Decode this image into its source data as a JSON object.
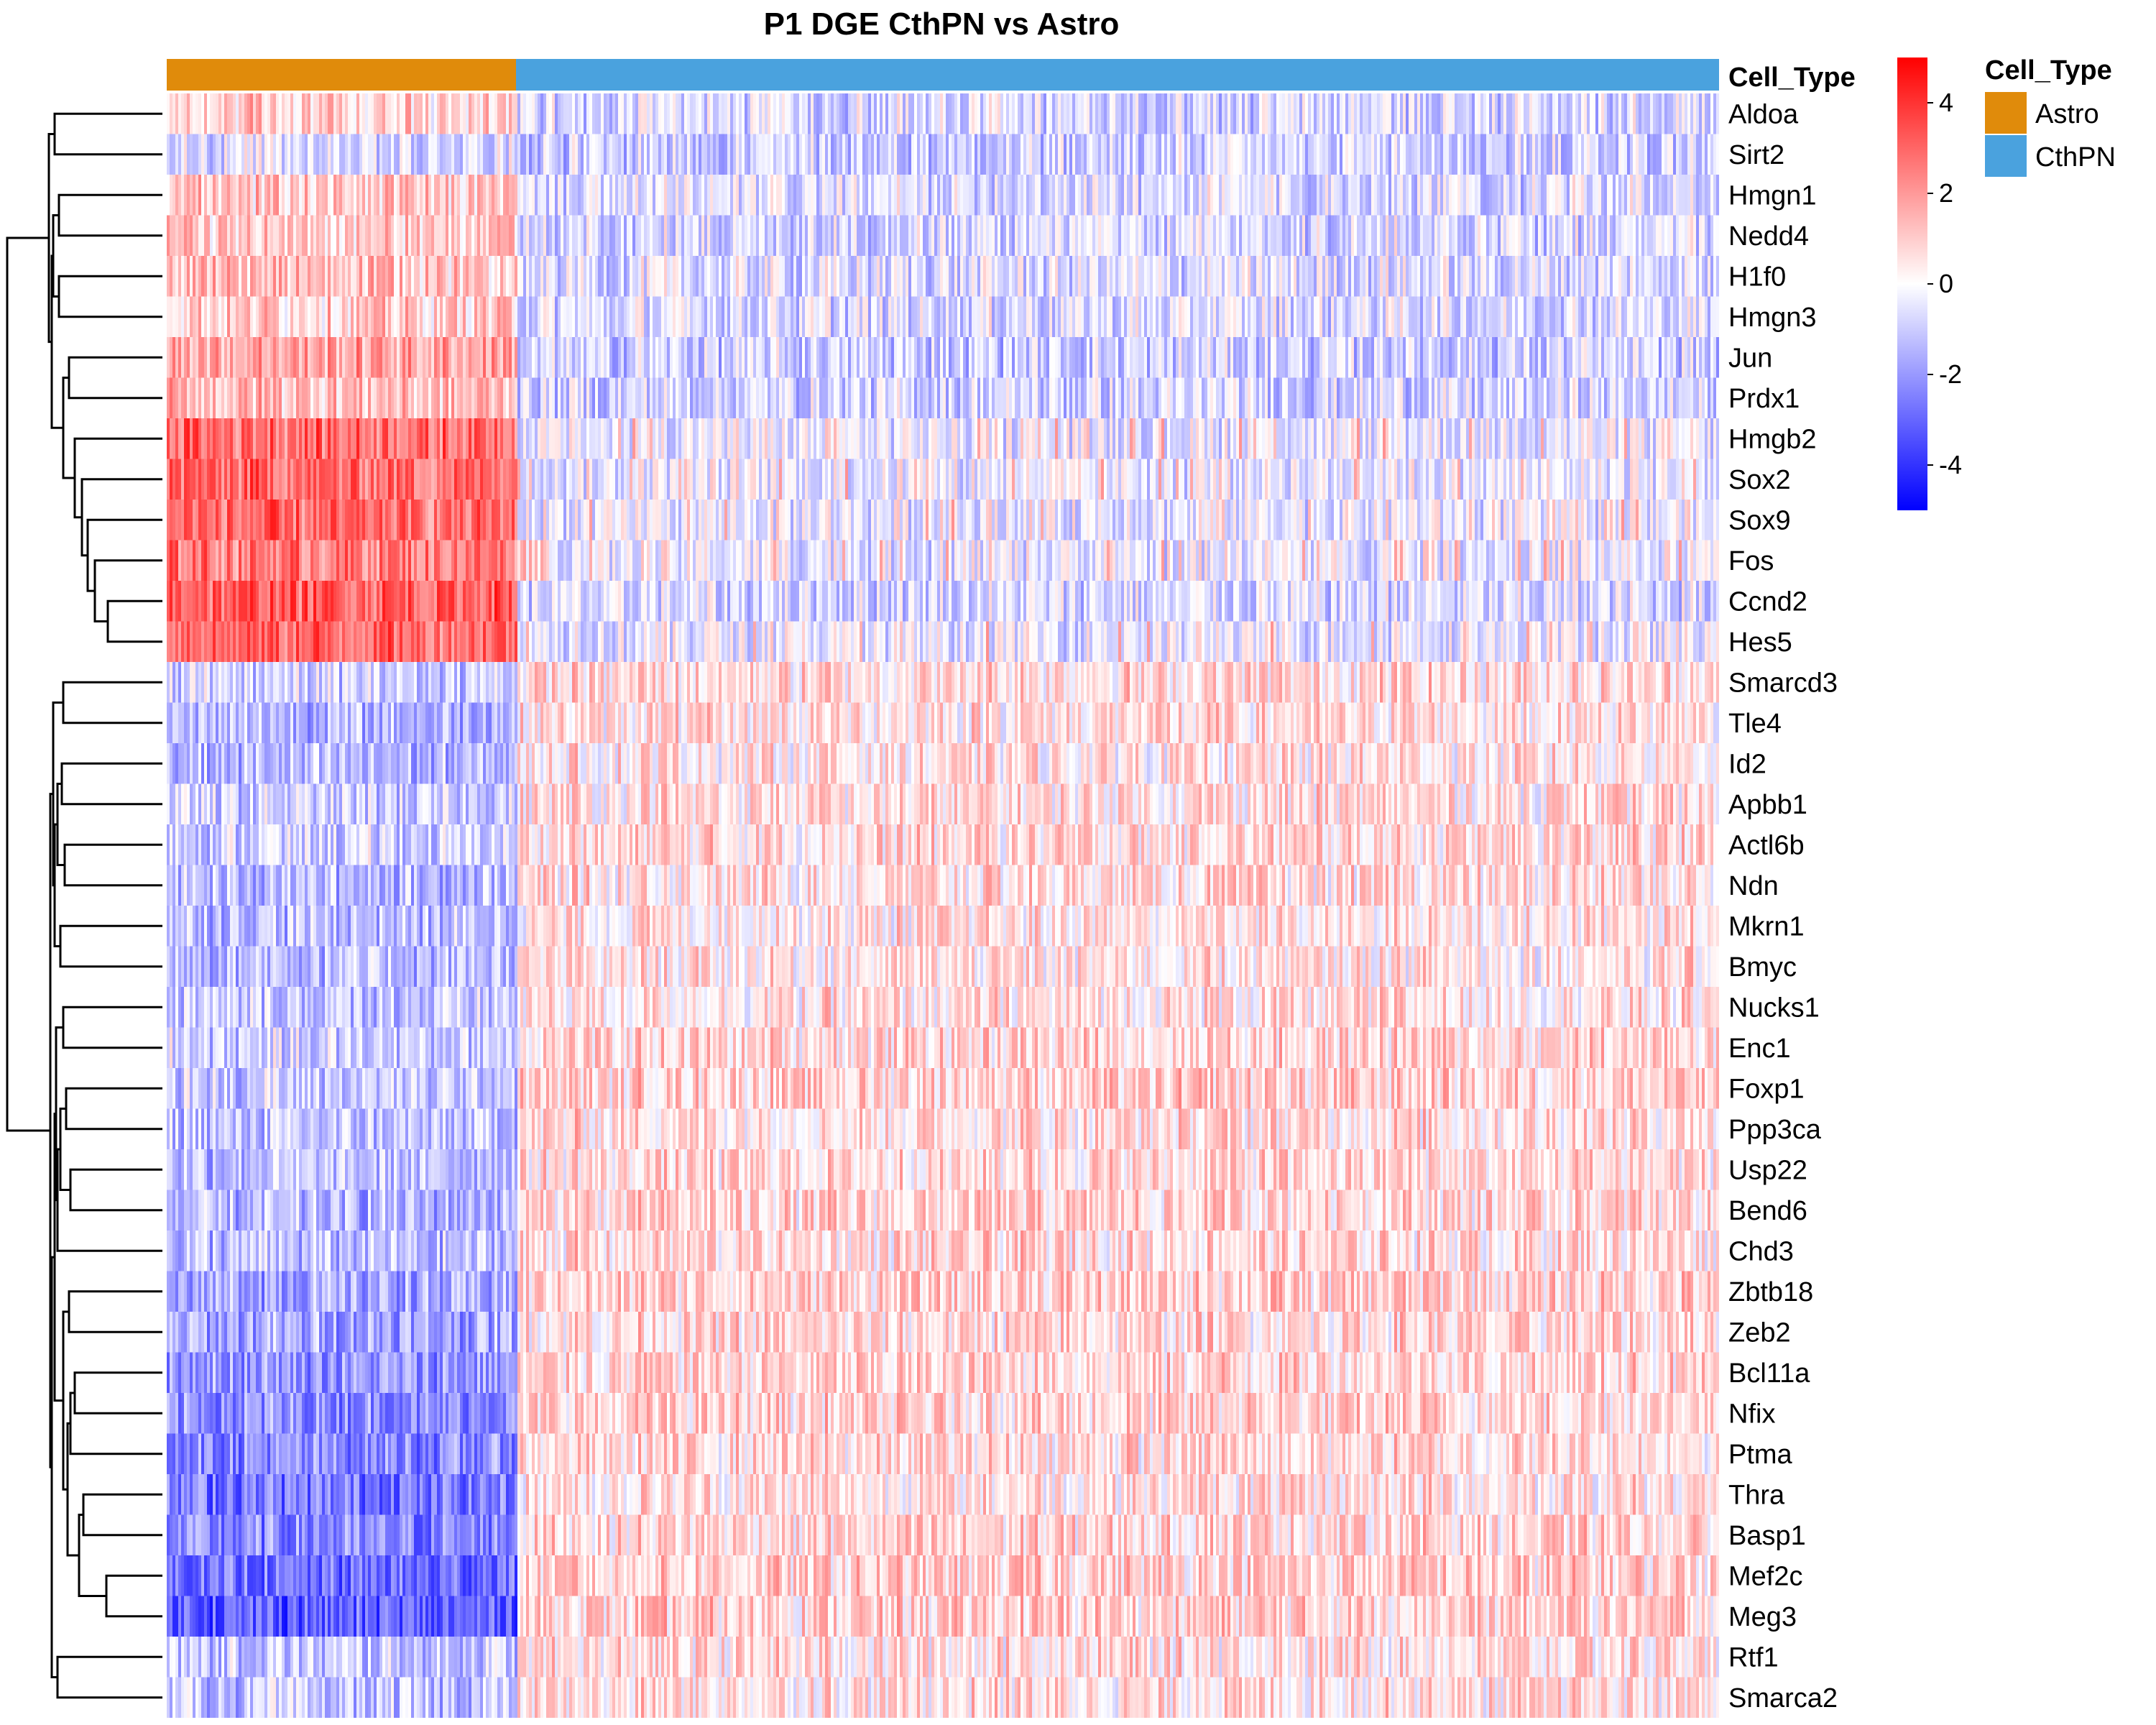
{
  "chart_data": {
    "type": "heatmap",
    "title": "P1 DGE CthPN vs Astro",
    "genes": [
      "Aldoa",
      "Sirt2",
      "Hmgn1",
      "Nedd4",
      "H1f0",
      "Hmgn3",
      "Jun",
      "Prdx1",
      "Hmgb2",
      "Sox2",
      "Sox9",
      "Fos",
      "Ccnd2",
      "Hes5",
      "Smarcd3",
      "Tle4",
      "Id2",
      "Apbb1",
      "Actl6b",
      "Ndn",
      "Mkrn1",
      "Bmyc",
      "Nucks1",
      "Enc1",
      "Foxp1",
      "Ppp3ca",
      "Usp22",
      "Bend6",
      "Chd3",
      "Zbtb18",
      "Zeb2",
      "Bcl11a",
      "Nfix",
      "Ptma",
      "Thra",
      "Basp1",
      "Mef2c",
      "Meg3",
      "Rtf1",
      "Smarca2"
    ],
    "column_groups": [
      {
        "name": "Astro",
        "fraction": 0.225,
        "color": "#E08B0B"
      },
      {
        "name": "CthPN",
        "fraction": 0.775,
        "color": "#4AA2DE"
      }
    ],
    "row_group_means": [
      {
        "gene": "Aldoa",
        "Astro": 0.9,
        "CthPN": -0.7
      },
      {
        "gene": "Sirt2",
        "Astro": -0.6,
        "CthPN": -0.9
      },
      {
        "gene": "Hmgn1",
        "Astro": 1.0,
        "CthPN": -0.6
      },
      {
        "gene": "Nedd4",
        "Astro": 1.0,
        "CthPN": -0.7
      },
      {
        "gene": "H1f0",
        "Astro": 1.2,
        "CthPN": -0.6
      },
      {
        "gene": "Hmgn3",
        "Astro": 1.0,
        "CthPN": -0.6
      },
      {
        "gene": "Jun",
        "Astro": 1.8,
        "CthPN": -0.9
      },
      {
        "gene": "Prdx1",
        "Astro": 1.3,
        "CthPN": -0.8
      },
      {
        "gene": "Hmgb2",
        "Astro": 2.9,
        "CthPN": -0.3
      },
      {
        "gene": "Sox2",
        "Astro": 2.9,
        "CthPN": -0.3
      },
      {
        "gene": "Sox9",
        "Astro": 2.8,
        "CthPN": -0.3
      },
      {
        "gene": "Fos",
        "Astro": 2.6,
        "CthPN": -0.3
      },
      {
        "gene": "Ccnd2",
        "Astro": 3.2,
        "CthPN": -0.7
      },
      {
        "gene": "Hes5",
        "Astro": 3.0,
        "CthPN": -0.3
      },
      {
        "gene": "Smarcd3",
        "Astro": -0.9,
        "CthPN": 0.7
      },
      {
        "gene": "Tle4",
        "Astro": -1.4,
        "CthPN": 0.6
      },
      {
        "gene": "Id2",
        "Astro": -1.5,
        "CthPN": 0.5
      },
      {
        "gene": "Apbb1",
        "Astro": -1.0,
        "CthPN": 0.6
      },
      {
        "gene": "Actl6b",
        "Astro": -0.9,
        "CthPN": 0.7
      },
      {
        "gene": "Ndn",
        "Astro": -1.3,
        "CthPN": 0.6
      },
      {
        "gene": "Mkrn1",
        "Astro": -1.2,
        "CthPN": 0.5
      },
      {
        "gene": "Bmyc",
        "Astro": -1.2,
        "CthPN": 0.5
      },
      {
        "gene": "Nucks1",
        "Astro": -1.1,
        "CthPN": 0.5
      },
      {
        "gene": "Enc1",
        "Astro": -0.9,
        "CthPN": 0.8
      },
      {
        "gene": "Foxp1",
        "Astro": -1.0,
        "CthPN": 0.9
      },
      {
        "gene": "Ppp3ca",
        "Astro": -1.2,
        "CthPN": 0.7
      },
      {
        "gene": "Usp22",
        "Astro": -1.2,
        "CthPN": 0.7
      },
      {
        "gene": "Bend6",
        "Astro": -1.5,
        "CthPN": 0.8
      },
      {
        "gene": "Chd3",
        "Astro": -1.3,
        "CthPN": 0.7
      },
      {
        "gene": "Zbtb18",
        "Astro": -1.7,
        "CthPN": 0.9
      },
      {
        "gene": "Zeb2",
        "Astro": -1.7,
        "CthPN": 0.7
      },
      {
        "gene": "Bcl11a",
        "Astro": -2.0,
        "CthPN": 0.8
      },
      {
        "gene": "Nfix",
        "Astro": -2.2,
        "CthPN": 0.8
      },
      {
        "gene": "Ptma",
        "Astro": -2.3,
        "CthPN": 0.7
      },
      {
        "gene": "Thra",
        "Astro": -2.6,
        "CthPN": 0.6
      },
      {
        "gene": "Basp1",
        "Astro": -2.4,
        "CthPN": 0.8
      },
      {
        "gene": "Mef2c",
        "Astro": -2.9,
        "CthPN": 0.9
      },
      {
        "gene": "Meg3",
        "Astro": -3.1,
        "CthPN": 0.9
      },
      {
        "gene": "Rtf1",
        "Astro": -1.1,
        "CthPN": 0.6
      },
      {
        "gene": "Smarca2",
        "Astro": -1.2,
        "CthPN": 0.6
      }
    ],
    "annotation_label": "Cell_Type",
    "legend_title": "Cell_Type",
    "color_scale": {
      "min": -5,
      "max": 5,
      "low": "#0000FF",
      "mid": "#FFFFFF",
      "high": "#FF0000",
      "ticks": [
        4,
        2,
        0,
        -2,
        -4
      ]
    },
    "dendrogram": "left",
    "legend_placement": "right"
  }
}
